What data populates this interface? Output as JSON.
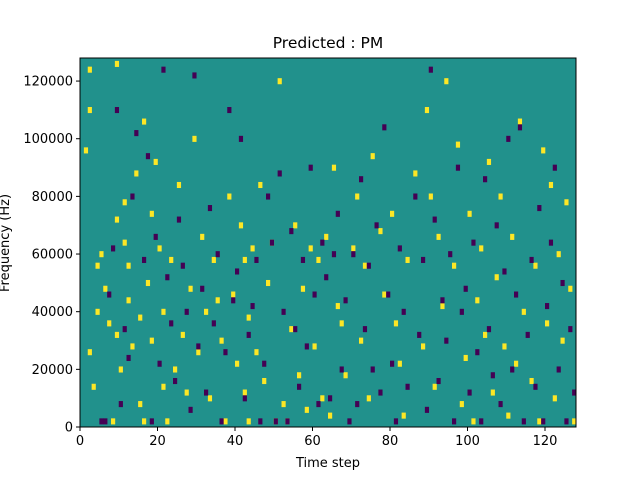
{
  "chart_data": {
    "type": "heatmap",
    "title": "Predicted : PM",
    "xlabel": "Time step",
    "ylabel": "Frequency (Hz)",
    "xlim": [
      0,
      128
    ],
    "ylim": [
      0,
      128000
    ],
    "x_ticks": [
      0,
      20,
      40,
      60,
      80,
      100,
      120
    ],
    "y_ticks": [
      0,
      20000,
      40000,
      60000,
      80000,
      100000,
      120000
    ],
    "x_tick_labels": [
      "0",
      "20",
      "40",
      "60",
      "80",
      "100",
      "120"
    ],
    "y_tick_labels": [
      "0",
      "20000",
      "40000",
      "60000",
      "80000",
      "100000",
      "120000"
    ],
    "grid": false,
    "colormap": "viridis",
    "background_value": 0.5,
    "colors": {
      "low": "#440154",
      "mid": "#21918c",
      "high": "#fde725"
    },
    "cells_high": [
      [
        1,
        96000
      ],
      [
        2,
        124000
      ],
      [
        2,
        110000
      ],
      [
        4,
        40000
      ],
      [
        2,
        26000
      ],
      [
        3,
        14000
      ],
      [
        4,
        56000
      ],
      [
        5,
        60000
      ],
      [
        6,
        48000
      ],
      [
        7,
        36000
      ],
      [
        8,
        2000
      ],
      [
        9,
        72000
      ],
      [
        9,
        32000
      ],
      [
        9,
        126000
      ],
      [
        10,
        20000
      ],
      [
        11,
        78000
      ],
      [
        11,
        64000
      ],
      [
        12,
        56000
      ],
      [
        12,
        44000
      ],
      [
        13,
        28000
      ],
      [
        14,
        88000
      ],
      [
        15,
        8000
      ],
      [
        15,
        38000
      ],
      [
        16,
        2000
      ],
      [
        16,
        106000
      ],
      [
        17,
        50000
      ],
      [
        18,
        74000
      ],
      [
        18,
        30000
      ],
      [
        19,
        92000
      ],
      [
        20,
        62000
      ],
      [
        21,
        14000
      ],
      [
        21,
        40000
      ],
      [
        22,
        2000
      ],
      [
        23,
        58000
      ],
      [
        24,
        20000
      ],
      [
        25,
        84000
      ],
      [
        26,
        32000
      ],
      [
        27,
        12000
      ],
      [
        28,
        48000
      ],
      [
        29,
        100000
      ],
      [
        30,
        26000
      ],
      [
        31,
        66000
      ],
      [
        32,
        40000
      ],
      [
        33,
        10000
      ],
      [
        34,
        58000
      ],
      [
        35,
        44000
      ],
      [
        36,
        30000
      ],
      [
        37,
        2000
      ],
      [
        38,
        80000
      ],
      [
        39,
        46000
      ],
      [
        40,
        22000
      ],
      [
        41,
        70000
      ],
      [
        42,
        58000
      ],
      [
        42,
        12000
      ],
      [
        43,
        38000
      ],
      [
        43,
        2000
      ],
      [
        44,
        62000
      ],
      [
        45,
        26000
      ],
      [
        46,
        84000
      ],
      [
        47,
        16000
      ],
      [
        48,
        50000
      ],
      [
        49,
        64000
      ],
      [
        50,
        2000
      ],
      [
        51,
        120000
      ],
      [
        52,
        8000
      ],
      [
        53,
        2000
      ],
      [
        54,
        34000
      ],
      [
        55,
        70000
      ],
      [
        56,
        18000
      ],
      [
        57,
        48000
      ],
      [
        58,
        6000
      ],
      [
        59,
        62000
      ],
      [
        60,
        28000
      ],
      [
        61,
        58000
      ],
      [
        62,
        10000
      ],
      [
        63,
        66000
      ],
      [
        64,
        4000
      ],
      [
        65,
        90000
      ],
      [
        66,
        42000
      ],
      [
        67,
        36000
      ],
      [
        68,
        18000
      ],
      [
        70,
        62000
      ],
      [
        71,
        80000
      ],
      [
        72,
        30000
      ],
      [
        73,
        56000
      ],
      [
        74,
        10000
      ],
      [
        75,
        94000
      ],
      [
        77,
        68000
      ],
      [
        78,
        46000
      ],
      [
        80,
        74000
      ],
      [
        81,
        36000
      ],
      [
        82,
        22000
      ],
      [
        83,
        4000
      ],
      [
        84,
        58000
      ],
      [
        86,
        88000
      ],
      [
        88,
        28000
      ],
      [
        89,
        110000
      ],
      [
        90,
        80000
      ],
      [
        91,
        14000
      ],
      [
        92,
        66000
      ],
      [
        93,
        42000
      ],
      [
        94,
        120000
      ],
      [
        96,
        56000
      ],
      [
        97,
        98000
      ],
      [
        98,
        8000
      ],
      [
        99,
        24000
      ],
      [
        100,
        74000
      ],
      [
        101,
        2000
      ],
      [
        102,
        44000
      ],
      [
        103,
        62000
      ],
      [
        104,
        32000
      ],
      [
        105,
        92000
      ],
      [
        106,
        12000
      ],
      [
        107,
        52000
      ],
      [
        108,
        80000
      ],
      [
        109,
        28000
      ],
      [
        110,
        4000
      ],
      [
        111,
        66000
      ],
      [
        112,
        22000
      ],
      [
        113,
        106000
      ],
      [
        114,
        40000
      ],
      [
        116,
        16000
      ],
      [
        117,
        56000
      ],
      [
        118,
        2000
      ],
      [
        119,
        96000
      ],
      [
        120,
        36000
      ],
      [
        121,
        84000
      ],
      [
        122,
        10000
      ],
      [
        123,
        60000
      ],
      [
        124,
        30000
      ],
      [
        125,
        78000
      ],
      [
        126,
        48000
      ],
      [
        127,
        2000
      ]
    ],
    "cells_low": [
      [
        5,
        2000
      ],
      [
        6,
        2000
      ],
      [
        7,
        46000
      ],
      [
        8,
        62000
      ],
      [
        9,
        110000
      ],
      [
        10,
        8000
      ],
      [
        11,
        34000
      ],
      [
        12,
        24000
      ],
      [
        13,
        80000
      ],
      [
        14,
        102000
      ],
      [
        16,
        58000
      ],
      [
        17,
        94000
      ],
      [
        18,
        2000
      ],
      [
        19,
        66000
      ],
      [
        20,
        22000
      ],
      [
        21,
        124000
      ],
      [
        22,
        52000
      ],
      [
        23,
        36000
      ],
      [
        24,
        16000
      ],
      [
        25,
        72000
      ],
      [
        26,
        56000
      ],
      [
        27,
        40000
      ],
      [
        28,
        6000
      ],
      [
        29,
        122000
      ],
      [
        30,
        28000
      ],
      [
        31,
        48000
      ],
      [
        32,
        12000
      ],
      [
        33,
        76000
      ],
      [
        34,
        36000
      ],
      [
        35,
        60000
      ],
      [
        36,
        2000
      ],
      [
        37,
        26000
      ],
      [
        38,
        110000
      ],
      [
        39,
        44000
      ],
      [
        40,
        54000
      ],
      [
        41,
        100000
      ],
      [
        42,
        10000
      ],
      [
        43,
        32000
      ],
      [
        44,
        42000
      ],
      [
        45,
        58000
      ],
      [
        46,
        2000
      ],
      [
        47,
        22000
      ],
      [
        48,
        80000
      ],
      [
        49,
        64000
      ],
      [
        50,
        2000
      ],
      [
        51,
        88000
      ],
      [
        52,
        40000
      ],
      [
        53,
        2000
      ],
      [
        54,
        68000
      ],
      [
        55,
        34000
      ],
      [
        56,
        14000
      ],
      [
        57,
        58000
      ],
      [
        58,
        28000
      ],
      [
        59,
        90000
      ],
      [
        60,
        46000
      ],
      [
        61,
        8000
      ],
      [
        62,
        64000
      ],
      [
        63,
        52000
      ],
      [
        64,
        10000
      ],
      [
        65,
        60000
      ],
      [
        66,
        74000
      ],
      [
        67,
        20000
      ],
      [
        68,
        44000
      ],
      [
        69,
        2000
      ],
      [
        70,
        60000
      ],
      [
        71,
        8000
      ],
      [
        72,
        86000
      ],
      [
        73,
        34000
      ],
      [
        74,
        56000
      ],
      [
        75,
        20000
      ],
      [
        76,
        70000
      ],
      [
        77,
        12000
      ],
      [
        78,
        104000
      ],
      [
        79,
        46000
      ],
      [
        80,
        22000
      ],
      [
        81,
        2000
      ],
      [
        82,
        62000
      ],
      [
        83,
        40000
      ],
      [
        84,
        14000
      ],
      [
        86,
        80000
      ],
      [
        87,
        32000
      ],
      [
        88,
        58000
      ],
      [
        89,
        6000
      ],
      [
        90,
        124000
      ],
      [
        91,
        72000
      ],
      [
        92,
        16000
      ],
      [
        93,
        44000
      ],
      [
        94,
        30000
      ],
      [
        95,
        60000
      ],
      [
        96,
        2000
      ],
      [
        97,
        90000
      ],
      [
        98,
        40000
      ],
      [
        99,
        48000
      ],
      [
        100,
        12000
      ],
      [
        101,
        64000
      ],
      [
        102,
        26000
      ],
      [
        103,
        2000
      ],
      [
        104,
        86000
      ],
      [
        105,
        34000
      ],
      [
        106,
        18000
      ],
      [
        107,
        70000
      ],
      [
        108,
        8000
      ],
      [
        109,
        54000
      ],
      [
        110,
        100000
      ],
      [
        111,
        20000
      ],
      [
        112,
        46000
      ],
      [
        113,
        104000
      ],
      [
        114,
        2000
      ],
      [
        115,
        32000
      ],
      [
        116,
        58000
      ],
      [
        117,
        14000
      ],
      [
        118,
        76000
      ],
      [
        119,
        2000
      ],
      [
        120,
        42000
      ],
      [
        121,
        64000
      ],
      [
        122,
        90000
      ],
      [
        123,
        20000
      ],
      [
        124,
        50000
      ],
      [
        125,
        2000
      ],
      [
        126,
        34000
      ],
      [
        127,
        12000
      ]
    ]
  }
}
